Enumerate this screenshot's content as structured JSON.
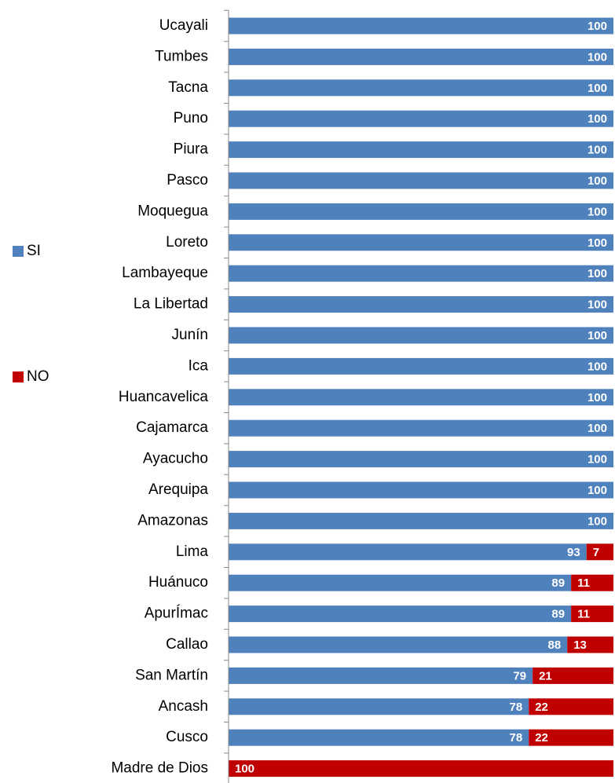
{
  "chart_data": {
    "type": "stacked-barh",
    "categories": [
      "Ucayali",
      "Tumbes",
      "Tacna",
      "Puno",
      "Piura",
      "Pasco",
      "Moquegua",
      "Loreto",
      "Lambayeque",
      "La Libertad",
      "Junín",
      "Ica",
      "Huancavelica",
      "Cajamarca",
      "Ayacucho",
      "Arequipa",
      "Amazonas",
      "Lima",
      "Huánuco",
      "ApurÍmac",
      "Callao",
      "San Martín",
      "Ancash",
      "Cusco",
      "Madre de Dios"
    ],
    "series": [
      {
        "name": "SI",
        "color": "#4f81bd",
        "values": [
          100,
          100,
          100,
          100,
          100,
          100,
          100,
          100,
          100,
          100,
          100,
          100,
          100,
          100,
          100,
          100,
          100,
          93,
          89,
          89,
          88,
          79,
          78,
          78,
          null
        ]
      },
      {
        "name": "NO",
        "color": "#c00000",
        "values": [
          null,
          null,
          null,
          null,
          null,
          null,
          null,
          null,
          null,
          null,
          null,
          null,
          null,
          null,
          null,
          null,
          null,
          7,
          11,
          11,
          13,
          21,
          22,
          22,
          100
        ]
      }
    ],
    "xlim": [
      0,
      100
    ],
    "legend": "left"
  }
}
